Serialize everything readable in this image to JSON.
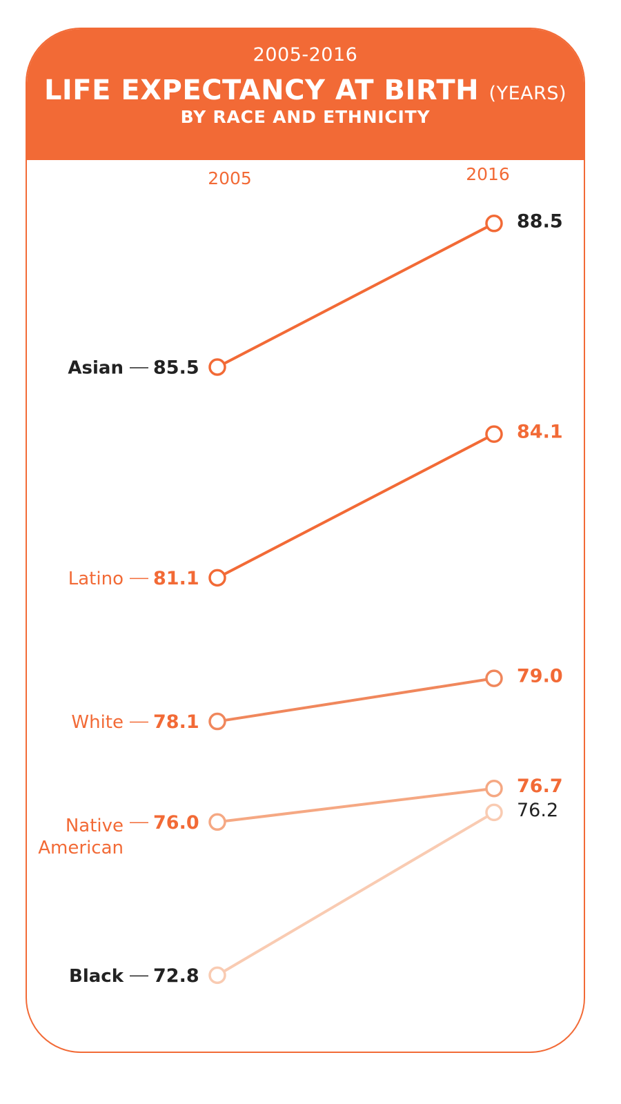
{
  "header": {
    "period": "2005-2016",
    "title": "LIFE EXPECTANCY AT BIRTH",
    "units": "(YEARS)",
    "subtitle": "BY RACE AND ETHNICITY"
  },
  "colors": {
    "accent": "#f26a36",
    "dark_text": "#222222"
  },
  "chart_data": {
    "type": "line",
    "title": "LIFE EXPECTANCY AT BIRTH",
    "x": [
      "2005",
      "2016"
    ],
    "series": [
      {
        "name": "Asian",
        "values": [
          85.5,
          88.5
        ],
        "labels": [
          "85.5",
          "88.5"
        ],
        "color": "#f26a36",
        "label_color": "#222222",
        "value_color_2005": "#222222",
        "value_color_2016": "#222222",
        "bold_name": true
      },
      {
        "name": "Latino",
        "values": [
          81.1,
          84.1
        ],
        "labels": [
          "81.1",
          "84.1"
        ],
        "color": "#f26a36",
        "label_color": "#f26a36",
        "value_color_2005": "#f26a36",
        "value_color_2016": "#f26a36",
        "bold_name": false
      },
      {
        "name": "White",
        "values": [
          78.1,
          79.0
        ],
        "labels": [
          "78.1",
          "79.0"
        ],
        "color": "#f0875c",
        "label_color": "#f26a36",
        "value_color_2005": "#f26a36",
        "value_color_2016": "#f26a36",
        "bold_name": false
      },
      {
        "name": "Native American",
        "name_lines": [
          "Native",
          "American"
        ],
        "values": [
          76.0,
          76.7
        ],
        "labels": [
          "76.0",
          "76.7"
        ],
        "color": "#f5a883",
        "label_color": "#f26a36",
        "value_color_2005": "#f26a36",
        "value_color_2016": "#f26a36",
        "bold_name": false
      },
      {
        "name": "Black",
        "values": [
          72.8,
          76.2
        ],
        "labels": [
          "72.8",
          "76.2"
        ],
        "color": "#f9cbb2",
        "label_color": "#222222",
        "value_color_2005": "#222222",
        "value_color_2016": "#222222",
        "bold_name": true
      }
    ]
  }
}
